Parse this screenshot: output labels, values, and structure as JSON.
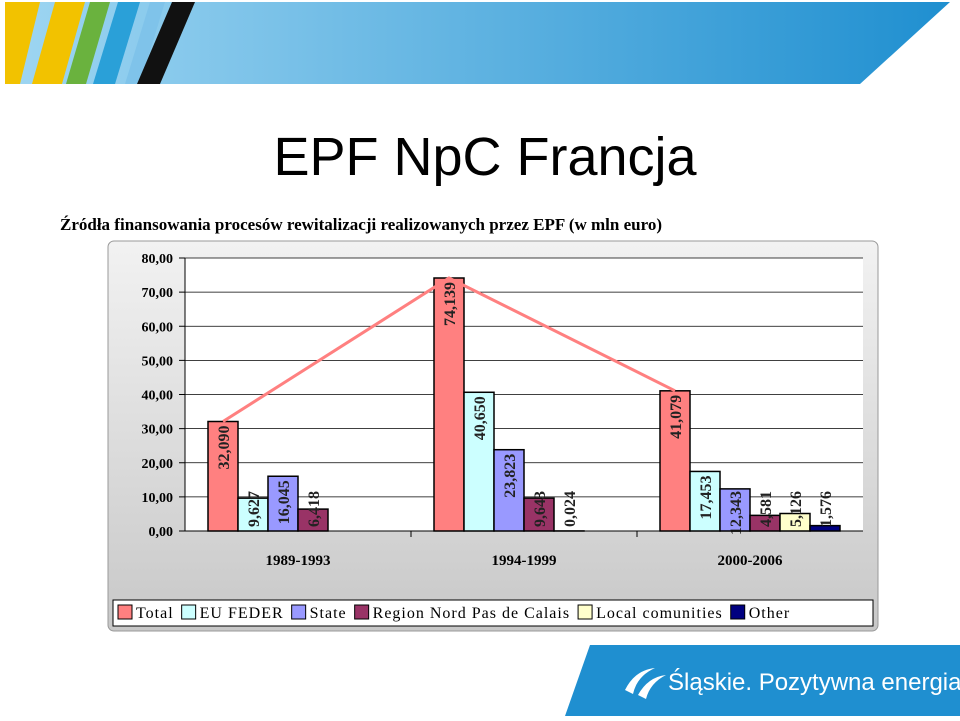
{
  "title": "EPF NpC Francja",
  "footer": {
    "brand": "Śląskie. Pozytywna energia"
  },
  "chart_data": {
    "type": "bar",
    "title": "Źródła finansowania procesów rewitalizacji realizowanych przez EPF (w mln euro)",
    "categories": [
      "1989-1993",
      "1994-1999",
      "2000-2006"
    ],
    "series": [
      {
        "name": "Total",
        "color": "#ff8080",
        "values": [
          32.09,
          74.139,
          41.079
        ],
        "value_labels": [
          "32,090",
          "74,139",
          "41,079"
        ]
      },
      {
        "name": "EU FEDER",
        "color": "#ccffff",
        "values": [
          9.627,
          40.65,
          17.453
        ],
        "value_labels": [
          "9,627",
          "40,650",
          "17,453"
        ]
      },
      {
        "name": "State",
        "color": "#9999ff",
        "values": [
          16.045,
          23.823,
          12.343
        ],
        "value_labels": [
          "16,045",
          "23,823",
          "12,343"
        ]
      },
      {
        "name": "Region Nord Pas de Calais",
        "color": "#993366",
        "values": [
          6.418,
          9.643,
          4.581
        ],
        "value_labels": [
          "6,418",
          "9,643",
          "4,581"
        ]
      },
      {
        "name": "Local comunities",
        "color": "#ffffcc",
        "values": [
          null,
          0.024,
          5.126
        ],
        "value_labels": [
          null,
          "0,024",
          "5,126"
        ]
      },
      {
        "name": "Other",
        "color": "#000080",
        "values": [
          null,
          null,
          1.576
        ],
        "value_labels": [
          null,
          null,
          "1,576"
        ]
      }
    ],
    "trend_line_color": "#ff8080",
    "ylim": [
      0,
      80
    ],
    "yticks": [
      {
        "value": 0,
        "label": "0,00"
      },
      {
        "value": 10,
        "label": "10,00"
      },
      {
        "value": 20,
        "label": "20,00"
      },
      {
        "value": 30,
        "label": "30,00"
      },
      {
        "value": 40,
        "label": "40,00"
      },
      {
        "value": 50,
        "label": "50,00"
      },
      {
        "value": 60,
        "label": "60,00"
      },
      {
        "value": 70,
        "label": "70,00"
      },
      {
        "value": 80,
        "label": "80,00"
      }
    ],
    "grid": true,
    "legend": "bottom"
  }
}
